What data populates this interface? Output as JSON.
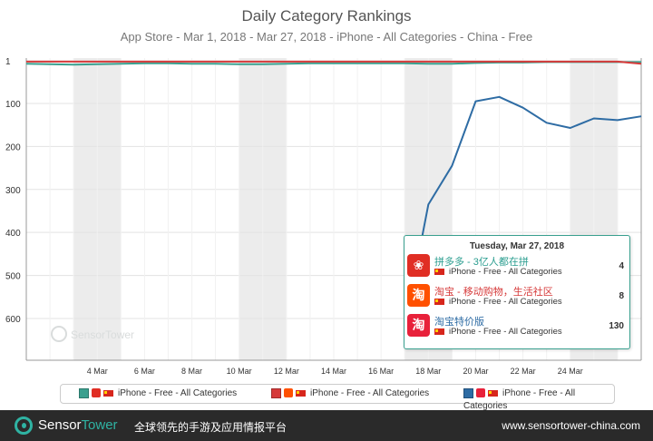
{
  "chart_data": {
    "type": "line",
    "title": "Daily Category Rankings",
    "subtitle": "App Store - Mar 1, 2018 - Mar 27, 2018 - iPhone - All Categories - China - Free",
    "x": [
      1,
      2,
      3,
      4,
      5,
      6,
      7,
      8,
      9,
      10,
      11,
      12,
      13,
      14,
      15,
      16,
      17,
      18,
      19,
      20,
      21,
      22,
      23,
      24,
      25,
      26,
      27
    ],
    "x_tick_labels": [
      "4 Mar",
      "6 Mar",
      "8 Mar",
      "10 Mar",
      "12 Mar",
      "14 Mar",
      "16 Mar",
      "18 Mar",
      "20 Mar",
      "22 Mar",
      "24 Mar"
    ],
    "x_tick_days": [
      4,
      6,
      8,
      10,
      12,
      14,
      16,
      18,
      20,
      22,
      24
    ],
    "y_tick_labels": [
      "1",
      "100",
      "200",
      "300",
      "400",
      "500",
      "600"
    ],
    "y_tick_values": [
      1,
      100,
      200,
      300,
      400,
      500,
      600
    ],
    "ylim": [
      1,
      700
    ],
    "y_reversed": true,
    "grid": true,
    "weekend_bands": [
      [
        3,
        5
      ],
      [
        10,
        12
      ],
      [
        17,
        19
      ],
      [
        24,
        26
      ]
    ],
    "series": [
      {
        "name": "iPhone - Free - All Categories",
        "color": "#3aa08f",
        "values": [
          8,
          9,
          10,
          9,
          8,
          7,
          7,
          8,
          8,
          9,
          9,
          8,
          7,
          7,
          7,
          7,
          7,
          8,
          8,
          6,
          5,
          5,
          4,
          4,
          4,
          4,
          4
        ]
      },
      {
        "name": "iPhone - Free - All Categories",
        "color": "#d63a3a",
        "values": [
          3,
          3,
          3,
          3,
          3,
          3,
          3,
          3,
          3,
          3,
          3,
          3,
          3,
          3,
          3,
          3,
          3,
          3,
          3,
          3,
          3,
          3,
          3,
          3,
          3,
          3,
          8
        ]
      },
      {
        "name": "iPhone - Free - All Categories",
        "color": "#2e6ca4",
        "values": [
          null,
          null,
          null,
          null,
          null,
          null,
          null,
          null,
          null,
          null,
          null,
          null,
          null,
          null,
          null,
          null,
          620,
          335,
          245,
          95,
          85,
          110,
          145,
          157,
          135,
          139,
          130
        ]
      }
    ]
  },
  "tooltip": {
    "date": "Tuesday, Mar 27, 2018",
    "rows": [
      {
        "name": "拼多多 - 3亿人都在拼",
        "sub": "iPhone - Free - All Categories",
        "value": "4",
        "icon_color": "#e02e24",
        "icon_glyph": "❀"
      },
      {
        "name": "淘宝 - 移动购物，生活社区",
        "sub": "iPhone - Free - All Categories",
        "value": "8",
        "icon_color": "#ff5000",
        "icon_glyph": "淘"
      },
      {
        "name": "淘宝特价版",
        "sub": "iPhone - Free - All Categories",
        "value": "130",
        "icon_color": "#e8213a",
        "icon_glyph": "淘"
      }
    ]
  },
  "legend": [
    {
      "label": "iPhone - Free - All Categories",
      "color": "#3aa08f",
      "app_color": "#e02e24"
    },
    {
      "label": "iPhone - Free - All Categories",
      "color": "#d63a3a",
      "app_color": "#ff5000"
    },
    {
      "label": "iPhone - Free - All Categories",
      "color": "#2e6ca4",
      "app_color": "#e8213a"
    }
  ],
  "watermark": "SensorTower",
  "footer": {
    "brand_a": "Sensor",
    "brand_b": "Tower",
    "slogan": "全球领先的手游及应用情报平台",
    "url": "www.sensortower-china.com"
  }
}
